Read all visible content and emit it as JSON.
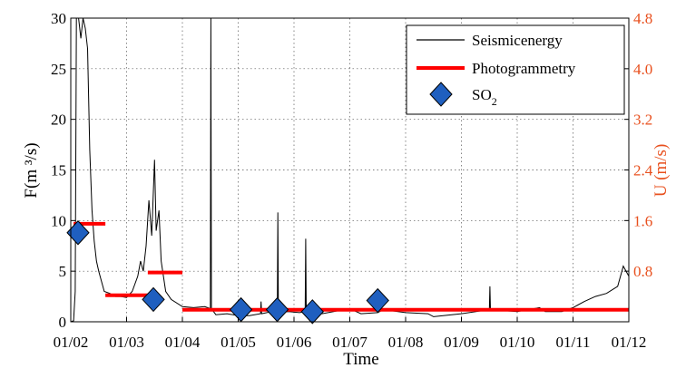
{
  "chart_data": {
    "type": "line",
    "xlabel": "Time",
    "ylabel_left": "F(m ³/s)",
    "ylabel_right": "U (m/s)",
    "x_range": [
      "01/02",
      "01/12"
    ],
    "ylim_left": [
      0,
      30
    ],
    "ylim_right": [
      0,
      4.8
    ],
    "x_ticks": [
      "01/02",
      "01/03",
      "01/04",
      "01/05",
      "01/06",
      "01/07",
      "01/08",
      "01/09",
      "01/10",
      "01/11",
      "01/12"
    ],
    "y_ticks_left": [
      "0",
      "5",
      "10",
      "15",
      "20",
      "25",
      "30"
    ],
    "y_ticks_right": [
      "0.8",
      "1.6",
      "2.4",
      "3.2",
      "4.0",
      "4.8"
    ],
    "grid": true,
    "legend_position": "top-right",
    "colors": {
      "seismic": "#000000",
      "photogrammetry": "#ff0000",
      "so2_fill": "#1f5fbf",
      "so2_edge": "#000000",
      "right_axis": "#e8501e"
    },
    "series": [
      {
        "name": "Seismicenergy",
        "points": [
          [
            0.0,
            0.0
          ],
          [
            0.05,
            0.1
          ],
          [
            0.08,
            3.0
          ],
          [
            0.1,
            30.0
          ],
          [
            0.14,
            30.0
          ],
          [
            0.18,
            28.0
          ],
          [
            0.22,
            30.0
          ],
          [
            0.26,
            29.0
          ],
          [
            0.3,
            27.0
          ],
          [
            0.34,
            17.0
          ],
          [
            0.38,
            11.0
          ],
          [
            0.42,
            8.0
          ],
          [
            0.46,
            6.0
          ],
          [
            0.5,
            5.0
          ],
          [
            0.55,
            4.0
          ],
          [
            0.6,
            3.0
          ],
          [
            0.7,
            2.8
          ],
          [
            0.8,
            2.5
          ],
          [
            0.9,
            2.5
          ],
          [
            1.0,
            2.4
          ],
          [
            1.1,
            3.0
          ],
          [
            1.2,
            4.5
          ],
          [
            1.25,
            6.0
          ],
          [
            1.3,
            5.0
          ],
          [
            1.35,
            7.5
          ],
          [
            1.4,
            12.0
          ],
          [
            1.45,
            8.5
          ],
          [
            1.5,
            16.0
          ],
          [
            1.53,
            9.0
          ],
          [
            1.58,
            11.0
          ],
          [
            1.62,
            6.0
          ],
          [
            1.7,
            3.0
          ],
          [
            1.8,
            2.2
          ],
          [
            2.0,
            1.5
          ],
          [
            2.2,
            1.4
          ],
          [
            2.4,
            1.5
          ],
          [
            2.5,
            1.3
          ],
          [
            2.51,
            34.0
          ],
          [
            2.52,
            1.3
          ],
          [
            2.6,
            0.7
          ],
          [
            2.8,
            0.8
          ],
          [
            3.0,
            0.6
          ],
          [
            3.2,
            0.6
          ],
          [
            3.4,
            0.8
          ],
          [
            3.41,
            2.0
          ],
          [
            3.42,
            0.8
          ],
          [
            3.6,
            1.0
          ],
          [
            3.7,
            0.9
          ],
          [
            3.71,
            10.8
          ],
          [
            3.72,
            0.9
          ],
          [
            3.9,
            1.0
          ],
          [
            4.1,
            0.9
          ],
          [
            4.2,
            1.0
          ],
          [
            4.21,
            8.2
          ],
          [
            4.22,
            1.0
          ],
          [
            4.5,
            0.8
          ],
          [
            5.0,
            1.3
          ],
          [
            5.2,
            0.8
          ],
          [
            5.5,
            0.9
          ],
          [
            5.6,
            1.2
          ],
          [
            6.0,
            0.9
          ],
          [
            6.4,
            0.8
          ],
          [
            6.5,
            0.5
          ],
          [
            7.0,
            0.8
          ],
          [
            7.5,
            1.2
          ],
          [
            7.51,
            3.5
          ],
          [
            7.52,
            1.2
          ],
          [
            8.0,
            1.0
          ],
          [
            8.4,
            1.4
          ],
          [
            8.5,
            1.0
          ],
          [
            8.8,
            1.0
          ],
          [
            9.0,
            1.4
          ],
          [
            9.2,
            2.0
          ],
          [
            9.4,
            2.5
          ],
          [
            9.6,
            2.8
          ],
          [
            9.8,
            3.5
          ],
          [
            9.9,
            5.5
          ],
          [
            10.0,
            4.5
          ]
        ]
      },
      {
        "name": "Photogrammetry",
        "segments": [
          {
            "x": [
              0.05,
              0.62
            ],
            "u": 1.55
          },
          {
            "x": [
              0.62,
              1.38
            ],
            "u": 0.42
          },
          {
            "x": [
              1.38,
              2.0
            ],
            "u": 0.78
          },
          {
            "x": [
              2.0,
              10.0
            ],
            "u": 0.19
          }
        ]
      },
      {
        "name": "SO₂",
        "points": [
          [
            0.13,
            8.8
          ],
          [
            1.48,
            2.2
          ],
          [
            3.05,
            1.2
          ],
          [
            3.7,
            1.2
          ],
          [
            4.33,
            1.0
          ],
          [
            5.5,
            2.1
          ]
        ]
      }
    ],
    "x_unit_note": "days"
  },
  "legend": {
    "entries": [
      "Seismicenergy",
      "Photogrammetry",
      "SO"
    ],
    "so2_subscript": "2"
  },
  "axes": {
    "xlabel": "Time",
    "ylabel_left": "F(m ³/s)",
    "ylabel_right": "U (m/s)"
  }
}
